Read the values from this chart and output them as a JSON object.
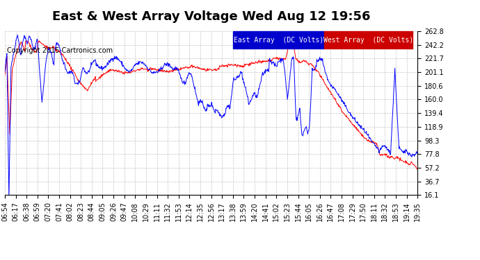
{
  "title": "East & West Array Voltage Wed Aug 12 19:56",
  "copyright": "Copyright 2015 Cartronics.com",
  "legend_east": "East Array  (DC Volts)",
  "legend_west": "West Array  (DC Volts)",
  "east_color": "#0000ff",
  "west_color": "#ff0000",
  "legend_east_bg": "#0000cc",
  "legend_west_bg": "#cc0000",
  "background_color": "#ffffff",
  "plot_bg_color": "#ffffff",
  "grid_color": "#aaaaaa",
  "ymin": 16.1,
  "ymax": 262.8,
  "yticks": [
    16.1,
    36.7,
    57.2,
    77.8,
    98.3,
    118.9,
    139.4,
    160.0,
    180.6,
    201.1,
    221.7,
    242.2,
    262.8
  ],
  "xtick_labels": [
    "06:54",
    "06:17",
    "06:38",
    "06:59",
    "07:20",
    "07:41",
    "08:02",
    "08:23",
    "08:44",
    "09:05",
    "09:26",
    "09:47",
    "10:08",
    "10:29",
    "11:11",
    "11:32",
    "11:53",
    "12:14",
    "12:35",
    "12:56",
    "13:17",
    "13:38",
    "13:59",
    "14:20",
    "14:41",
    "15:02",
    "15:23",
    "15:44",
    "16:05",
    "16:26",
    "16:47",
    "17:08",
    "17:29",
    "17:50",
    "18:11",
    "18:32",
    "18:53",
    "19:14",
    "19:35"
  ],
  "title_fontsize": 13,
  "tick_fontsize": 7,
  "copyright_fontsize": 7,
  "line_width": 0.7
}
